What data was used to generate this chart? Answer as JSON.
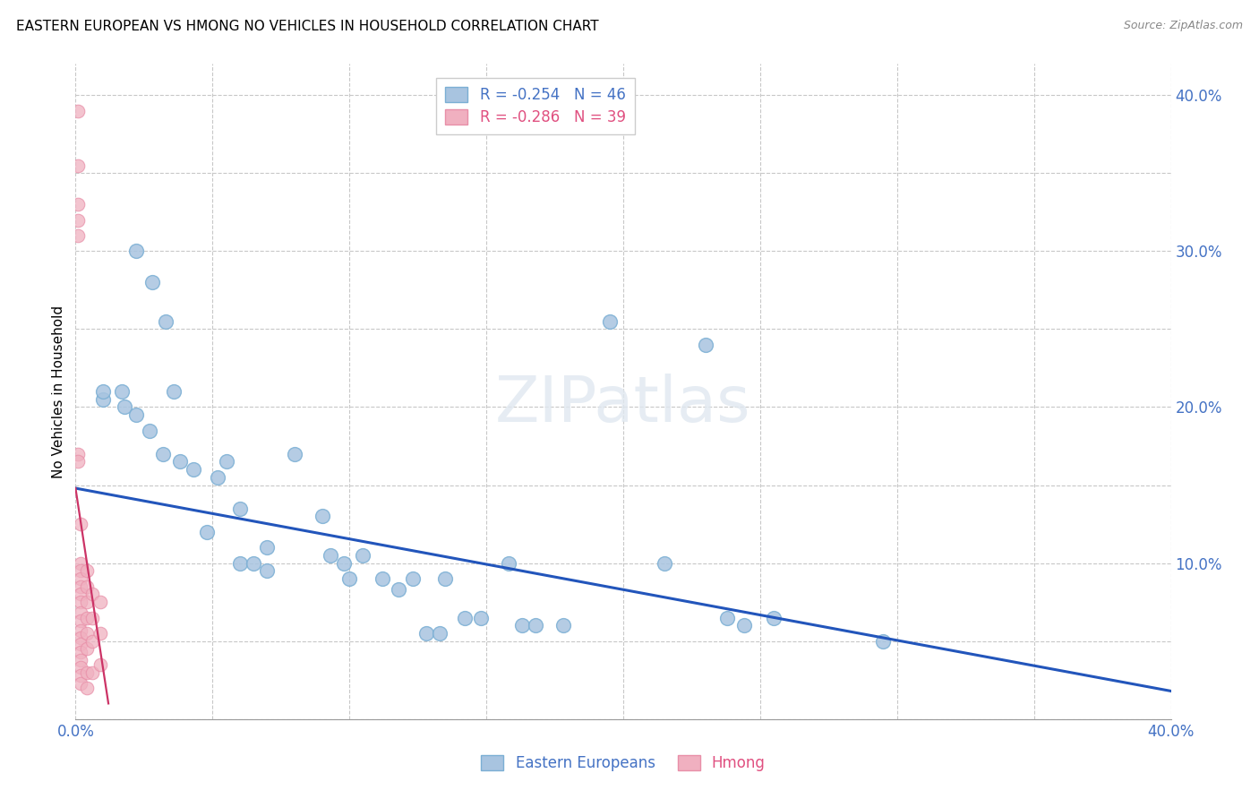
{
  "title": "EASTERN EUROPEAN VS HMONG NO VEHICLES IN HOUSEHOLD CORRELATION CHART",
  "source": "Source: ZipAtlas.com",
  "ylabel": "No Vehicles in Household",
  "xlim": [
    0.0,
    0.4
  ],
  "ylim": [
    0.0,
    0.42
  ],
  "xticks": [
    0.0,
    0.05,
    0.1,
    0.15,
    0.2,
    0.25,
    0.3,
    0.35,
    0.4
  ],
  "yticks": [
    0.0,
    0.05,
    0.1,
    0.15,
    0.2,
    0.25,
    0.3,
    0.35,
    0.4
  ],
  "grid_color": "#c8c8c8",
  "background_color": "#ffffff",
  "legend_r_blue": "R = -0.254",
  "legend_n_blue": "N = 46",
  "legend_r_pink": "R = -0.286",
  "legend_n_pink": "N = 39",
  "blue_color": "#a8c4e0",
  "pink_color": "#f0b0c0",
  "blue_edge_color": "#7bafd4",
  "pink_edge_color": "#e88fa8",
  "blue_line_color": "#2255bb",
  "pink_line_color": "#cc3366",
  "blue_scatter": [
    [
      0.01,
      0.205
    ],
    [
      0.018,
      0.2
    ],
    [
      0.022,
      0.3
    ],
    [
      0.028,
      0.28
    ],
    [
      0.033,
      0.255
    ],
    [
      0.036,
      0.21
    ],
    [
      0.01,
      0.21
    ],
    [
      0.017,
      0.21
    ],
    [
      0.022,
      0.195
    ],
    [
      0.027,
      0.185
    ],
    [
      0.032,
      0.17
    ],
    [
      0.038,
      0.165
    ],
    [
      0.043,
      0.16
    ],
    [
      0.048,
      0.12
    ],
    [
      0.055,
      0.165
    ],
    [
      0.06,
      0.135
    ],
    [
      0.052,
      0.155
    ],
    [
      0.06,
      0.1
    ],
    [
      0.065,
      0.1
    ],
    [
      0.07,
      0.095
    ],
    [
      0.07,
      0.11
    ],
    [
      0.08,
      0.17
    ],
    [
      0.09,
      0.13
    ],
    [
      0.093,
      0.105
    ],
    [
      0.098,
      0.1
    ],
    [
      0.1,
      0.09
    ],
    [
      0.105,
      0.105
    ],
    [
      0.112,
      0.09
    ],
    [
      0.118,
      0.083
    ],
    [
      0.123,
      0.09
    ],
    [
      0.128,
      0.055
    ],
    [
      0.133,
      0.055
    ],
    [
      0.135,
      0.09
    ],
    [
      0.142,
      0.065
    ],
    [
      0.148,
      0.065
    ],
    [
      0.158,
      0.1
    ],
    [
      0.163,
      0.06
    ],
    [
      0.168,
      0.06
    ],
    [
      0.178,
      0.06
    ],
    [
      0.195,
      0.255
    ],
    [
      0.215,
      0.1
    ],
    [
      0.23,
      0.24
    ],
    [
      0.238,
      0.065
    ],
    [
      0.244,
      0.06
    ],
    [
      0.255,
      0.065
    ],
    [
      0.295,
      0.05
    ]
  ],
  "pink_scatter": [
    [
      0.001,
      0.39
    ],
    [
      0.001,
      0.355
    ],
    [
      0.001,
      0.33
    ],
    [
      0.001,
      0.32
    ],
    [
      0.001,
      0.31
    ],
    [
      0.001,
      0.17
    ],
    [
      0.001,
      0.165
    ],
    [
      0.002,
      0.125
    ],
    [
      0.002,
      0.1
    ],
    [
      0.002,
      0.095
    ],
    [
      0.002,
      0.09
    ],
    [
      0.002,
      0.085
    ],
    [
      0.002,
      0.08
    ],
    [
      0.002,
      0.075
    ],
    [
      0.002,
      0.068
    ],
    [
      0.002,
      0.063
    ],
    [
      0.002,
      0.057
    ],
    [
      0.002,
      0.052
    ],
    [
      0.002,
      0.048
    ],
    [
      0.002,
      0.043
    ],
    [
      0.002,
      0.038
    ],
    [
      0.002,
      0.033
    ],
    [
      0.002,
      0.028
    ],
    [
      0.002,
      0.023
    ],
    [
      0.004,
      0.095
    ],
    [
      0.004,
      0.085
    ],
    [
      0.004,
      0.075
    ],
    [
      0.004,
      0.065
    ],
    [
      0.004,
      0.055
    ],
    [
      0.004,
      0.045
    ],
    [
      0.004,
      0.03
    ],
    [
      0.004,
      0.02
    ],
    [
      0.006,
      0.08
    ],
    [
      0.006,
      0.065
    ],
    [
      0.006,
      0.05
    ],
    [
      0.006,
      0.03
    ],
    [
      0.009,
      0.075
    ],
    [
      0.009,
      0.055
    ],
    [
      0.009,
      0.035
    ]
  ],
  "blue_trendline": [
    [
      0.0,
      0.148
    ],
    [
      0.4,
      0.018
    ]
  ],
  "pink_trendline": [
    [
      0.0,
      0.148
    ],
    [
      0.012,
      0.01
    ]
  ]
}
